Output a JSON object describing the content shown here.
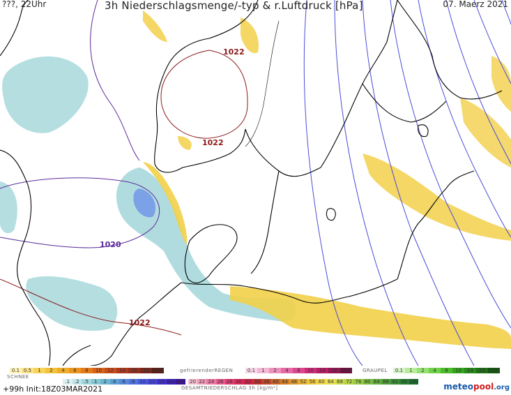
{
  "header": {
    "left": "???, 22Uhr",
    "title": "3h Niederschlagsmenge/-typ & r.Luftdruck [hPa]",
    "date": "07. Maerz 2021"
  },
  "isobars": [
    {
      "label": "1022",
      "color": "#8b1a1a"
    },
    {
      "label": "1022",
      "color": "#8b1a1a"
    },
    {
      "label": "1020",
      "color": "#5a2a9a"
    },
    {
      "label": "1022",
      "color": "#8b1a1a"
    }
  ],
  "legend": {
    "rain_title": "",
    "rain_scale": [
      "0.1",
      "0.5",
      "1",
      "2",
      "4",
      "6",
      "8",
      "10",
      "12",
      "14",
      "16",
      "18",
      "2025+"
    ],
    "freezing_title": "gefrierenderREGEN",
    "freezing_scale": [
      "0.1",
      "1",
      "2",
      "4",
      "8",
      "10",
      "14",
      "16",
      "2025+"
    ],
    "graupel_title": "GRAUPEL",
    "graupel_scale": [
      "0.1",
      "1",
      "2",
      "4",
      "8",
      "10",
      "14",
      "16",
      "2025+"
    ],
    "snow_title": "SCHNEE",
    "snow_scale": [
      ".1",
      ".2",
      ".5",
      "1",
      "2",
      "4",
      "6",
      "8",
      "10",
      "12",
      "14",
      "16",
      "18"
    ],
    "total_scale": [
      "20",
      "22",
      "24",
      "26",
      "28",
      "30",
      "32",
      "34",
      "36",
      "40",
      "44",
      "48",
      "52",
      "56",
      "60",
      "64",
      "68",
      "72",
      "76",
      "80",
      "84",
      "88",
      "92",
      "96",
      "100"
    ],
    "total_title": "GESAMTNIEDERSCHLAG 3h [kg/m²]"
  },
  "footer": {
    "left": "+99h Init:18Z03MAR2021",
    "brand_pre": "meteo",
    "brand_mid": "pool",
    "brand_suf": ".org"
  },
  "colors": {
    "rain": "#f2d04a",
    "snow": "#a8d8dc",
    "snow_dark": "#6a8ee8",
    "coast": "#000000",
    "isobar_blue": "#4a4ad8",
    "isobar_red": "#8b1a1a"
  }
}
